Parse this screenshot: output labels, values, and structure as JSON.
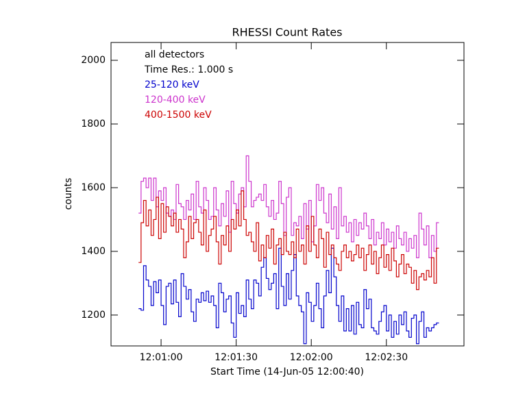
{
  "chart_data": {
    "type": "step",
    "title": "RHESSI Count Rates",
    "xlabel": "Start Time (14-Jun-05 12:00:40)",
    "ylabel": "counts",
    "annotations": [
      "all detectors",
      "Time Res.: 1.000 s"
    ],
    "xlim": [
      0,
      141
    ],
    "xticks": [
      {
        "value": 20,
        "label": "12:01:00"
      },
      {
        "value": 50,
        "label": "12:01:30"
      },
      {
        "value": 80,
        "label": "12:02:00"
      },
      {
        "value": 110,
        "label": "12:02:30"
      }
    ],
    "ylim": [
      1103,
      2056
    ],
    "yticks": [
      1200,
      1400,
      1600,
      1800,
      2000
    ],
    "x": [
      11,
      12,
      13,
      14,
      15,
      16,
      17,
      18,
      19,
      20,
      21,
      22,
      23,
      24,
      25,
      26,
      27,
      28,
      29,
      30,
      31,
      32,
      33,
      34,
      35,
      36,
      37,
      38,
      39,
      40,
      41,
      42,
      43,
      44,
      45,
      46,
      47,
      48,
      49,
      50,
      51,
      52,
      53,
      54,
      55,
      56,
      57,
      58,
      59,
      60,
      61,
      62,
      63,
      64,
      65,
      66,
      67,
      68,
      69,
      70,
      71,
      72,
      73,
      74,
      75,
      76,
      77,
      78,
      79,
      80,
      81,
      82,
      83,
      84,
      85,
      86,
      87,
      88,
      89,
      90,
      91,
      92,
      93,
      94,
      95,
      96,
      97,
      98,
      99,
      100,
      101,
      102,
      103,
      104,
      105,
      106,
      107,
      108,
      109,
      110,
      111,
      112,
      113,
      114,
      115,
      116,
      117,
      118,
      119,
      120,
      121,
      122,
      123,
      124,
      125,
      126,
      127,
      128,
      129,
      130
    ],
    "series": [
      {
        "name": "25-120 keV",
        "color": "#0000cc",
        "values": [
          1220,
          1215,
          1355,
          1310,
          1290,
          1230,
          1305,
          1270,
          1310,
          1230,
          1170,
          1290,
          1300,
          1235,
          1310,
          1240,
          1195,
          1330,
          1290,
          1250,
          1280,
          1210,
          1180,
          1250,
          1240,
          1270,
          1245,
          1275,
          1240,
          1260,
          1230,
          1160,
          1300,
          1270,
          1210,
          1250,
          1260,
          1175,
          1130,
          1270,
          1205,
          1230,
          1195,
          1310,
          1250,
          1220,
          1310,
          1300,
          1260,
          1350,
          1380,
          1315,
          1280,
          1300,
          1330,
          1220,
          1410,
          1290,
          1230,
          1330,
          1250,
          1340,
          1390,
          1260,
          1230,
          1210,
          1110,
          1270,
          1240,
          1180,
          1230,
          1300,
          1220,
          1160,
          1260,
          1340,
          1270,
          1410,
          1320,
          1230,
          1180,
          1260,
          1150,
          1220,
          1150,
          1230,
          1140,
          1240,
          1170,
          1160,
          1280,
          1220,
          1250,
          1160,
          1150,
          1140,
          1180,
          1210,
          1230,
          1150,
          1200,
          1130,
          1180,
          1140,
          1200,
          1170,
          1210,
          1150,
          1130,
          1190,
          1200,
          1110,
          1180,
          1210,
          1130,
          1160,
          1150,
          1160,
          1170,
          1175
        ]
      },
      {
        "name": "120-400 keV",
        "color": "#cc33cc",
        "values": [
          1520,
          1620,
          1630,
          1600,
          1630,
          1560,
          1630,
          1540,
          1590,
          1560,
          1600,
          1520,
          1510,
          1530,
          1500,
          1610,
          1550,
          1540,
          1500,
          1560,
          1530,
          1580,
          1500,
          1620,
          1540,
          1520,
          1600,
          1560,
          1500,
          1510,
          1600,
          1530,
          1480,
          1550,
          1510,
          1590,
          1460,
          1620,
          1550,
          1520,
          1580,
          1600,
          1540,
          1700,
          1620,
          1540,
          1560,
          1570,
          1580,
          1560,
          1610,
          1540,
          1510,
          1560,
          1500,
          1520,
          1620,
          1550,
          1450,
          1570,
          1600,
          1450,
          1490,
          1480,
          1510,
          1440,
          1550,
          1470,
          1560,
          1430,
          1480,
          1610,
          1560,
          1600,
          1520,
          1490,
          1580,
          1470,
          1540,
          1440,
          1600,
          1480,
          1510,
          1460,
          1490,
          1430,
          1500,
          1450,
          1490,
          1470,
          1520,
          1480,
          1440,
          1500,
          1420,
          1460,
          1440,
          1490,
          1420,
          1470,
          1430,
          1460,
          1410,
          1480,
          1440,
          1420,
          1460,
          1400,
          1440,
          1410,
          1450,
          1380,
          1520,
          1470,
          1420,
          1480,
          1380,
          1450,
          1400,
          1490
        ]
      },
      {
        "name": "400-1500 keV",
        "color": "#cc0000",
        "values": [
          1365,
          1490,
          1560,
          1480,
          1530,
          1450,
          1500,
          1570,
          1440,
          1550,
          1460,
          1540,
          1510,
          1480,
          1520,
          1460,
          1500,
          1470,
          1380,
          1430,
          1510,
          1440,
          1490,
          1500,
          1460,
          1420,
          1530,
          1400,
          1450,
          1470,
          1510,
          1430,
          1360,
          1450,
          1420,
          1480,
          1400,
          1500,
          1470,
          1530,
          1480,
          1590,
          1500,
          1450,
          1460,
          1430,
          1400,
          1490,
          1370,
          1420,
          1380,
          1450,
          1410,
          1470,
          1360,
          1420,
          1440,
          1390,
          1460,
          1400,
          1390,
          1430,
          1380,
          1470,
          1400,
          1420,
          1360,
          1480,
          1400,
          1510,
          1420,
          1380,
          1470,
          1440,
          1350,
          1460,
          1390,
          1420,
          1380,
          1360,
          1340,
          1400,
          1420,
          1380,
          1400,
          1370,
          1390,
          1420,
          1380,
          1410,
          1340,
          1390,
          1420,
          1360,
          1400,
          1330,
          1380,
          1420,
          1350,
          1390,
          1340,
          1410,
          1370,
          1320,
          1360,
          1390,
          1330,
          1360,
          1350,
          1300,
          1340,
          1280,
          1320,
          1330,
          1310,
          1340,
          1320,
          1380,
          1300,
          1410
        ]
      }
    ]
  }
}
